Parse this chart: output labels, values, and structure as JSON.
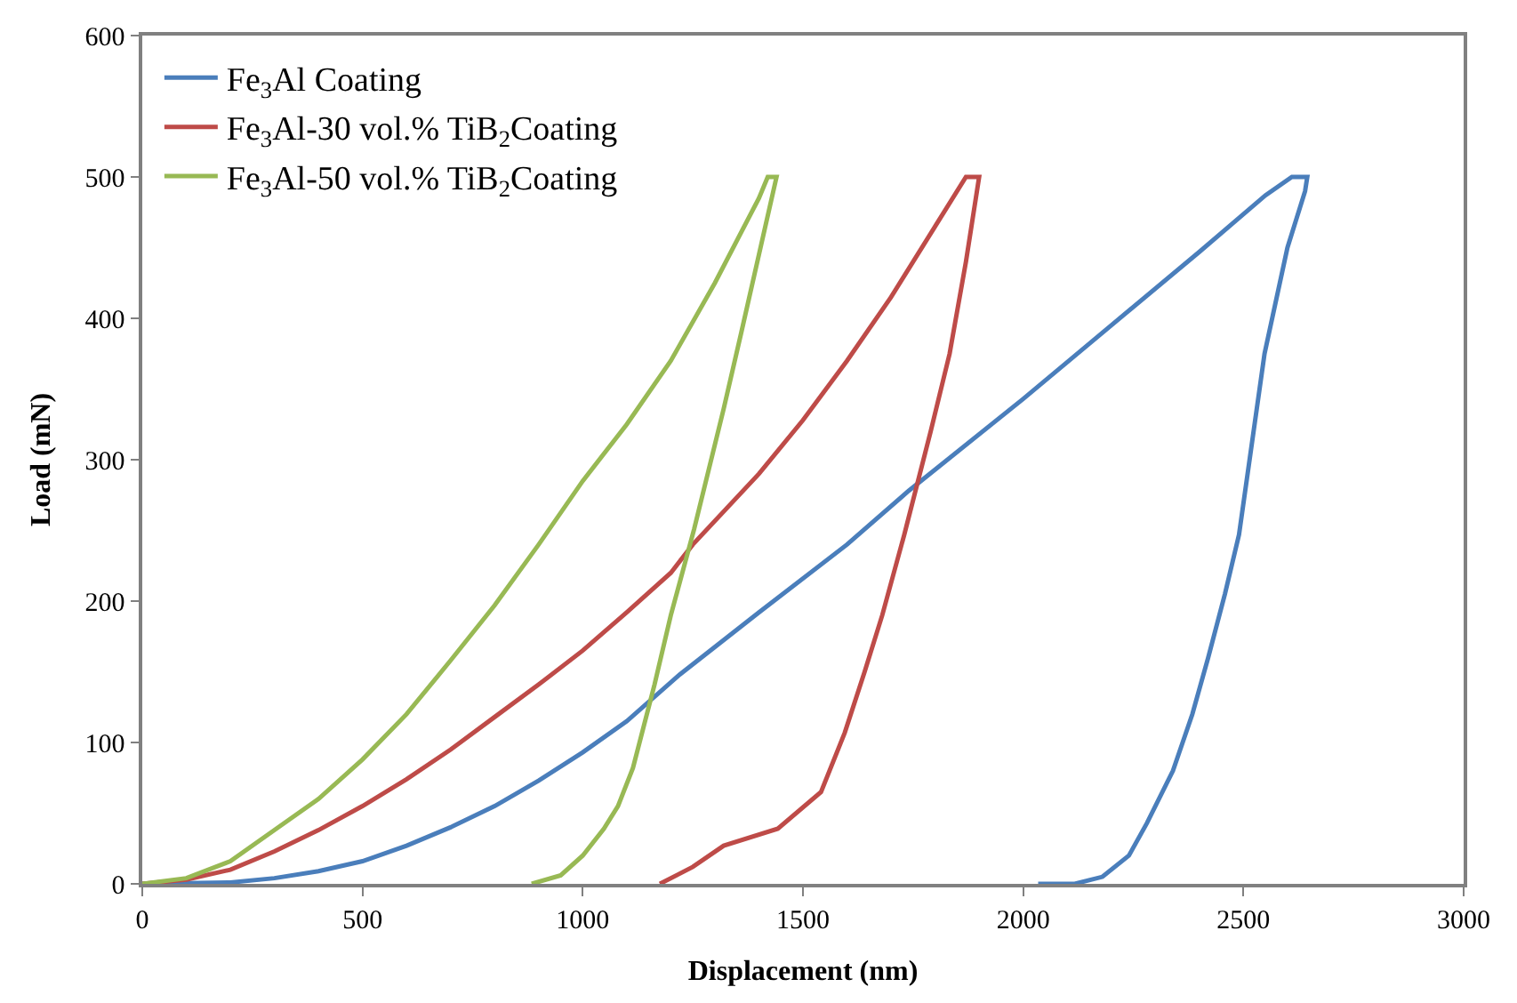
{
  "chart_data": {
    "type": "line",
    "xlabel": "Displacement (nm)",
    "ylabel": "Load (mN)",
    "xlim": [
      0,
      3000
    ],
    "ylim": [
      0,
      600
    ],
    "xticks": [
      0,
      500,
      1000,
      1500,
      2000,
      2500,
      3000
    ],
    "yticks": [
      0,
      100,
      200,
      300,
      400,
      500,
      600
    ],
    "legend": "top left",
    "marker": "none",
    "line_style": "solid",
    "series": [
      {
        "name": "Fe$_{3}$Al Coating",
        "color": "#4a7ebb",
        "x": [
          0,
          200,
          300,
          400,
          500,
          600,
          700,
          800,
          900,
          1000,
          1100,
          1220,
          1400,
          1600,
          1740,
          2000,
          2200,
          2400,
          2550,
          2610,
          2645,
          2640,
          2600,
          2548,
          2490,
          2458,
          2420,
          2384,
          2340,
          2281,
          2240,
          2180,
          2117,
          2034
        ],
        "values": [
          0,
          1,
          4,
          9,
          16,
          27,
          40,
          55,
          73,
          93,
          115,
          148,
          192,
          240,
          278,
          343,
          395,
          447,
          487,
          500,
          500,
          490,
          450,
          375,
          247,
          205,
          160,
          120,
          80,
          43,
          20,
          5,
          0,
          0
        ]
      },
      {
        "name": "Fe$_{3}$Al-30 vol.% TiB$_{2}$Coating",
        "color": "#be4b48",
        "x": [
          0,
          100,
          200,
          300,
          400,
          500,
          600,
          700,
          800,
          900,
          1000,
          1100,
          1200,
          1250,
          1400,
          1500,
          1600,
          1700,
          1800,
          1870,
          1900,
          1870,
          1833,
          1790,
          1730,
          1680,
          1640,
          1595,
          1541,
          1443,
          1320,
          1250,
          1175
        ],
        "values": [
          0,
          3,
          10,
          23,
          38,
          55,
          74,
          95,
          118,
          141,
          165,
          192,
          220,
          240,
          290,
          328,
          370,
          415,
          465,
          500,
          500,
          440,
          375,
          320,
          247,
          190,
          150,
          107,
          65,
          39,
          27,
          12,
          0
        ]
      },
      {
        "name": "Fe$_{3}$Al-50 vol.% TiB$_{2}$Coating",
        "color": "#98b954",
        "x": [
          0,
          100,
          200,
          300,
          400,
          500,
          600,
          700,
          800,
          900,
          1000,
          1100,
          1200,
          1300,
          1400,
          1420,
          1440,
          1400,
          1360,
          1320,
          1253,
          1200,
          1163,
          1114,
          1080,
          1048,
          1000,
          950,
          884
        ],
        "values": [
          0,
          4,
          16,
          38,
          60,
          88,
          120,
          158,
          197,
          240,
          285,
          325,
          370,
          425,
          485,
          500,
          500,
          445,
          390,
          336,
          251,
          190,
          141,
          82,
          55,
          39,
          20,
          6,
          0
        ]
      }
    ]
  }
}
